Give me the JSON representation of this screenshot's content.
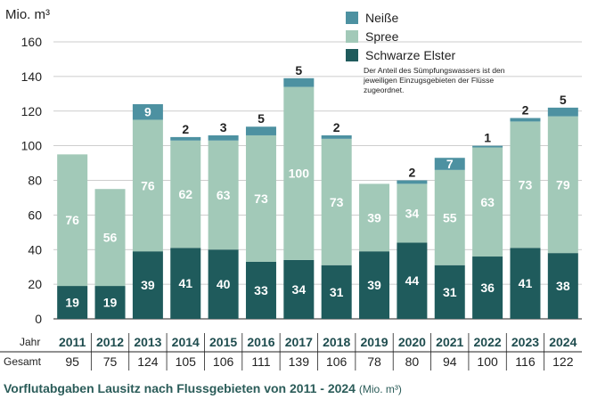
{
  "chart_data": {
    "type": "stacked-bar",
    "title": "Vorflutabgaben Lausitz nach Flussgebieten von 2011 - 2024",
    "title_unit": "(Mio. m³)",
    "ylabel": "Mio. m³",
    "ylim": [
      0,
      160
    ],
    "yticks": [
      0,
      20,
      40,
      60,
      80,
      100,
      120,
      140,
      160
    ],
    "grid": true,
    "legend_position": "top-right",
    "note": "Der Anteil des Sümpfungswassers ist den jeweiligen Einzugsgebieten der Flüsse zugeordnet.",
    "row_labels": {
      "year": "Jahr",
      "total": "Gesamt"
    },
    "categories": [
      "2011",
      "2012",
      "2013",
      "2014",
      "2015",
      "2016",
      "2017",
      "2018",
      "2019",
      "2020",
      "2021",
      "2022",
      "2023",
      "2024"
    ],
    "series": [
      {
        "name": "Schwarze Elster",
        "color": "#1f5b5c",
        "label_color": "#ffffff",
        "label_position": "inside",
        "values": [
          19,
          19,
          39,
          41,
          40,
          33,
          34,
          31,
          39,
          44,
          31,
          36,
          41,
          38
        ]
      },
      {
        "name": "Spree",
        "color": "#a2c9b8",
        "label_color": "#ffffff",
        "label_position": "inside",
        "values": [
          76,
          56,
          76,
          62,
          63,
          73,
          100,
          73,
          39,
          34,
          55,
          63,
          73,
          79
        ]
      },
      {
        "name": "Neiße",
        "color": "#4d91a1",
        "label_color": "#222222",
        "values": [
          null,
          null,
          9,
          2,
          3,
          5,
          5,
          2,
          null,
          2,
          7,
          1,
          2,
          5
        ],
        "label_inside": [
          false,
          false,
          true,
          false,
          false,
          false,
          false,
          false,
          false,
          false,
          true,
          false,
          false,
          false
        ]
      }
    ],
    "totals": [
      95,
      75,
      124,
      105,
      106,
      111,
      139,
      106,
      78,
      80,
      94,
      100,
      116,
      122
    ]
  }
}
